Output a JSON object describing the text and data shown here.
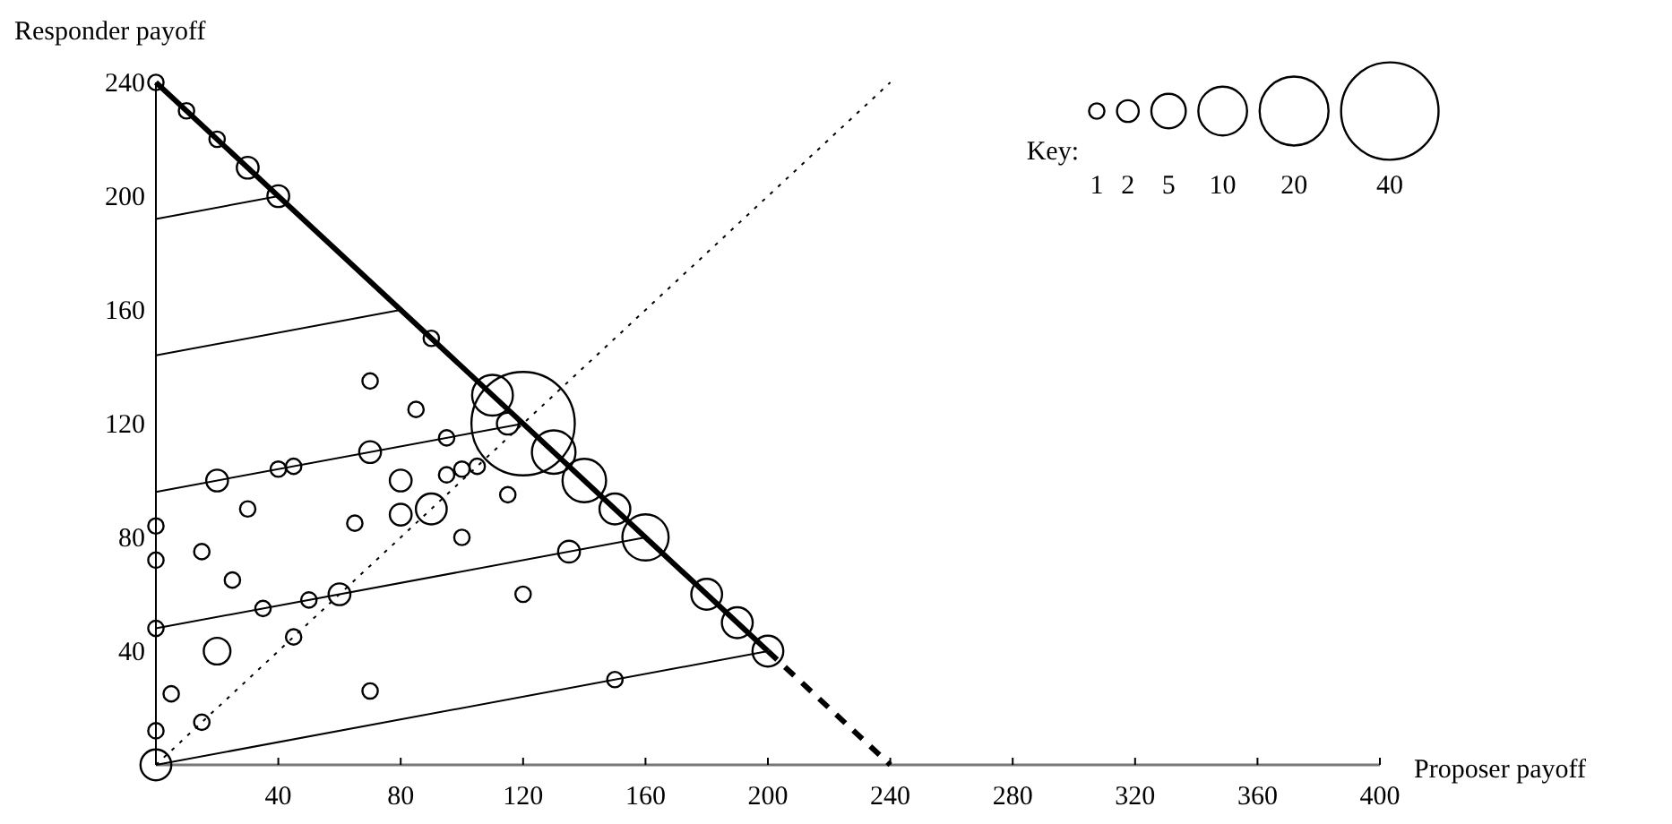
{
  "chart_data": {
    "type": "bubble",
    "xlabel": "Proposer payoff",
    "ylabel": "Responder payoff",
    "legend_title": "Key:",
    "size_legend": [
      1,
      2,
      5,
      10,
      20,
      40
    ],
    "grid": false,
    "xlim": [
      0,
      400
    ],
    "xticks": [
      40,
      80,
      120,
      160,
      200,
      240,
      280,
      320,
      360,
      400
    ],
    "ylim": [
      0,
      240
    ],
    "yticks": [
      40,
      80,
      120,
      160,
      200,
      240
    ],
    "series": [
      {
        "type": "line",
        "color": "#000000",
        "line_style": "solid",
        "x": [
          0,
          200
        ],
        "values": [
          0,
          40
        ]
      },
      {
        "type": "line",
        "color": "#000000",
        "line_style": "solid",
        "x": [
          0,
          160
        ],
        "values": [
          48,
          80
        ]
      },
      {
        "type": "line",
        "color": "#000000",
        "line_style": "solid",
        "x": [
          0,
          120
        ],
        "values": [
          96,
          120
        ]
      },
      {
        "type": "line",
        "color": "#000000",
        "line_style": "solid",
        "x": [
          0,
          80
        ],
        "values": [
          144,
          160
        ]
      },
      {
        "type": "line",
        "color": "#000000",
        "line_style": "solid",
        "x": [
          0,
          40
        ],
        "values": [
          192,
          200
        ]
      },
      {
        "type": "line",
        "color": "#000000",
        "line_style": "dotted",
        "x": [
          0,
          240
        ],
        "values": [
          0,
          240
        ]
      },
      {
        "type": "line",
        "color": "#000000",
        "line_style": "solid",
        "x": [
          0,
          200
        ],
        "values": [
          240,
          40
        ]
      },
      {
        "type": "line",
        "color": "#000000",
        "line_style": "dashed",
        "x": [
          200,
          240
        ],
        "values": [
          40,
          0
        ]
      },
      {
        "color": "#000000",
        "x": [
          0,
          10,
          20,
          30,
          40,
          90,
          70,
          85,
          110,
          120,
          115,
          130,
          140,
          150,
          160,
          180,
          190,
          200,
          150,
          135,
          120,
          115,
          100,
          105,
          100,
          95,
          95,
          90,
          80,
          80,
          70,
          65,
          60,
          50,
          35,
          45,
          40,
          20,
          30,
          0,
          0,
          15,
          25,
          0,
          20,
          5,
          70,
          45,
          15,
          0,
          0
        ],
        "values": [
          240,
          230,
          220,
          210,
          200,
          150,
          135,
          125,
          130,
          120,
          120,
          110,
          100,
          90,
          80,
          60,
          50,
          40,
          30,
          75,
          60,
          95,
          80,
          105,
          104,
          102,
          115,
          90,
          88,
          100,
          110,
          85,
          60,
          58,
          55,
          105,
          104,
          100,
          90,
          84,
          72,
          75,
          65,
          48,
          40,
          25,
          26,
          45,
          15,
          12,
          0
        ],
        "sizes": [
          1,
          1,
          1,
          2,
          2,
          1,
          1,
          1,
          7,
          45,
          2,
          8,
          8,
          4,
          9,
          4,
          4,
          4,
          1,
          2,
          1,
          1,
          1,
          1,
          1,
          1,
          1,
          4,
          2,
          2,
          2,
          1,
          2,
          1,
          1,
          1,
          1,
          2,
          1,
          1,
          1,
          1,
          1,
          1,
          3,
          1,
          1,
          1,
          1,
          1,
          4
        ]
      }
    ]
  }
}
